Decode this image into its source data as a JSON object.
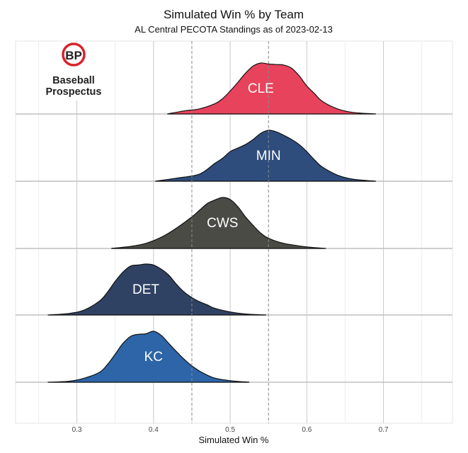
{
  "chart_data": {
    "type": "area",
    "title": "Simulated Win % by Team",
    "subtitle": "AL Central PECOTA Standings as of 2023-02-13",
    "xlabel": "Simulated Win %",
    "xlim": [
      0.22,
      0.79
    ],
    "xticks": [
      {
        "value": 0.3,
        "label": "0.3"
      },
      {
        "value": 0.4,
        "label": "0.4"
      },
      {
        "value": 0.5,
        "label": "0.5"
      },
      {
        "value": 0.6,
        "label": "0.6"
      },
      {
        "value": 0.7,
        "label": "0.7"
      }
    ],
    "reference_lines": [
      0.45,
      0.55
    ],
    "grid": true,
    "series": [
      {
        "name": "CLE",
        "color": "#e8435c",
        "x": [
          0.418,
          0.44,
          0.46,
          0.48,
          0.49,
          0.5,
          0.51,
          0.52,
          0.53,
          0.54,
          0.55,
          0.56,
          0.57,
          0.58,
          0.59,
          0.6,
          0.61,
          0.62,
          0.64,
          0.66,
          0.69
        ],
        "density": [
          0.0,
          0.06,
          0.1,
          0.2,
          0.3,
          0.45,
          0.62,
          0.8,
          0.94,
          1.0,
          0.98,
          0.97,
          0.96,
          0.9,
          0.75,
          0.55,
          0.4,
          0.25,
          0.1,
          0.03,
          0.0
        ]
      },
      {
        "name": "MIN",
        "color": "#2e4d7c",
        "x": [
          0.402,
          0.43,
          0.46,
          0.48,
          0.49,
          0.5,
          0.51,
          0.52,
          0.53,
          0.54,
          0.55,
          0.56,
          0.57,
          0.58,
          0.59,
          0.6,
          0.61,
          0.62,
          0.64,
          0.66,
          0.69
        ],
        "density": [
          0.0,
          0.06,
          0.14,
          0.35,
          0.45,
          0.58,
          0.65,
          0.72,
          0.82,
          0.94,
          1.0,
          0.97,
          0.9,
          0.82,
          0.72,
          0.58,
          0.42,
          0.28,
          0.12,
          0.04,
          0.0
        ]
      },
      {
        "name": "CWS",
        "color": "#4a4b45",
        "x": [
          0.345,
          0.37,
          0.39,
          0.41,
          0.43,
          0.45,
          0.46,
          0.47,
          0.48,
          0.49,
          0.5,
          0.51,
          0.52,
          0.53,
          0.54,
          0.55,
          0.57,
          0.6,
          0.625
        ],
        "density": [
          0.0,
          0.04,
          0.1,
          0.22,
          0.4,
          0.62,
          0.75,
          0.88,
          0.95,
          1.0,
          0.96,
          0.82,
          0.62,
          0.45,
          0.3,
          0.2,
          0.1,
          0.03,
          0.0
        ]
      },
      {
        "name": "DET",
        "color": "#2f4263",
        "x": [
          0.262,
          0.29,
          0.31,
          0.33,
          0.34,
          0.35,
          0.36,
          0.37,
          0.38,
          0.39,
          0.4,
          0.41,
          0.42,
          0.43,
          0.44,
          0.45,
          0.46,
          0.47,
          0.48,
          0.5,
          0.52,
          0.547
        ],
        "density": [
          0.0,
          0.03,
          0.1,
          0.28,
          0.45,
          0.66,
          0.84,
          0.96,
          0.98,
          1.0,
          0.98,
          0.9,
          0.78,
          0.6,
          0.45,
          0.34,
          0.26,
          0.2,
          0.13,
          0.06,
          0.02,
          0.0
        ]
      },
      {
        "name": "KC",
        "color": "#2d65a8",
        "x": [
          0.262,
          0.29,
          0.31,
          0.33,
          0.34,
          0.35,
          0.36,
          0.37,
          0.38,
          0.39,
          0.4,
          0.41,
          0.42,
          0.43,
          0.44,
          0.45,
          0.46,
          0.47,
          0.48,
          0.5,
          0.525
        ],
        "density": [
          0.0,
          0.02,
          0.08,
          0.2,
          0.35,
          0.55,
          0.76,
          0.9,
          0.94,
          0.95,
          1.0,
          0.92,
          0.76,
          0.6,
          0.45,
          0.32,
          0.22,
          0.14,
          0.08,
          0.03,
          0.0
        ]
      }
    ]
  },
  "logo": {
    "initials": "BP",
    "line1": "Baseball",
    "line2": "Prospectus",
    "ring_color": "#d9232d"
  }
}
